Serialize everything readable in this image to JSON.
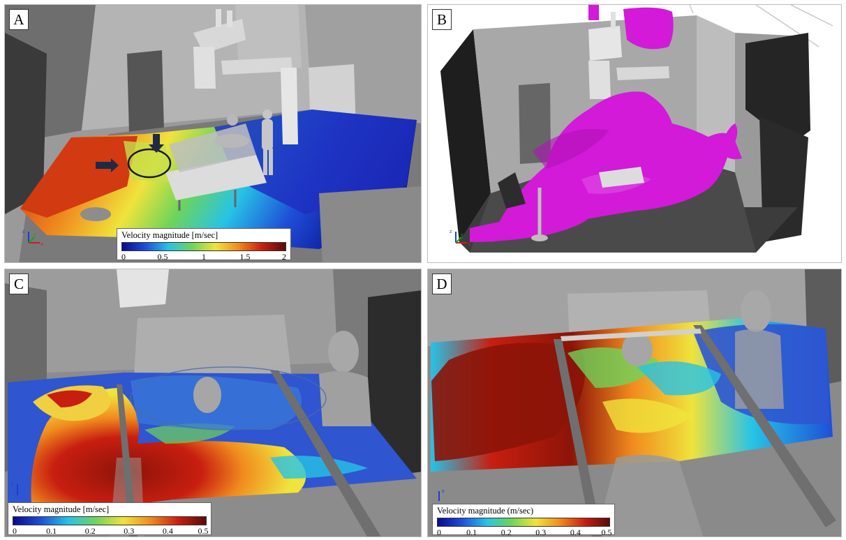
{
  "panels": [
    {
      "id": "A",
      "label": "A",
      "legend": {
        "title": "Velocity magnitude [m/sec]",
        "ticks": [
          "0",
          "0.5",
          "1",
          "1.5",
          "2"
        ],
        "colors": [
          "#0a0a8c",
          "#1e4fd8",
          "#27c3e6",
          "#6fd45a",
          "#f0e33c",
          "#f08a1e",
          "#c81e10",
          "#5a0a0a"
        ]
      },
      "axis": {
        "z": "z",
        "y": "y",
        "x": "x"
      }
    },
    {
      "id": "B",
      "label": "B",
      "isosurface_color": "#d21ad8",
      "axis": {
        "z": "z",
        "y": "y",
        "x": "x"
      }
    },
    {
      "id": "C",
      "label": "C",
      "legend": {
        "title": "Velocity magnitude [m/sec]",
        "ticks": [
          "0",
          "0.1",
          "0.2",
          "0.3",
          "0.4",
          "0.5"
        ],
        "colors": [
          "#0a0a8c",
          "#1e4fd8",
          "#27c3e6",
          "#6fd45a",
          "#f0e33c",
          "#f08a1e",
          "#c81e10",
          "#5a0a0a"
        ]
      },
      "axis": {
        "z": "z"
      }
    },
    {
      "id": "D",
      "label": "D",
      "legend": {
        "title": "Velocity magnitude (m/sec)",
        "ticks": [
          "0",
          "0.1",
          "0.2",
          "0.3",
          "0.4",
          "0.5"
        ],
        "colors": [
          "#0a0a8c",
          "#1e4fd8",
          "#27c3e6",
          "#6fd45a",
          "#f0e33c",
          "#f08a1e",
          "#c81e10",
          "#5a0a0a"
        ]
      },
      "axis": {
        "z": "z"
      }
    }
  ]
}
